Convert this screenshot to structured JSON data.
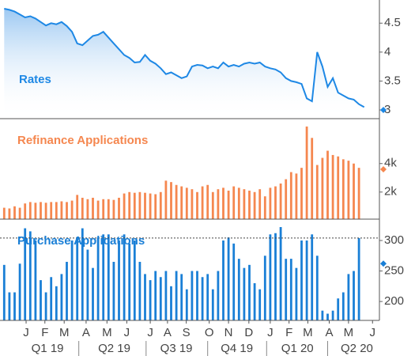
{
  "chart_data": [
    {
      "type": "line",
      "title": "Rates",
      "color": "#1e88e5",
      "values": [
        4.75,
        4.73,
        4.7,
        4.65,
        4.6,
        4.62,
        4.58,
        4.52,
        4.46,
        4.5,
        4.48,
        4.52,
        4.45,
        4.35,
        4.15,
        4.12,
        4.2,
        4.28,
        4.3,
        4.35,
        4.25,
        4.15,
        4.05,
        3.95,
        3.9,
        3.82,
        3.83,
        3.95,
        3.85,
        3.8,
        3.72,
        3.62,
        3.65,
        3.6,
        3.55,
        3.58,
        3.75,
        3.78,
        3.77,
        3.72,
        3.75,
        3.72,
        3.82,
        3.75,
        3.78,
        3.75,
        3.8,
        3.82,
        3.8,
        3.82,
        3.75,
        3.72,
        3.7,
        3.65,
        3.55,
        3.5,
        3.48,
        3.45,
        3.2,
        3.15,
        4.0,
        3.75,
        3.4,
        3.55,
        3.3,
        3.25,
        3.2,
        3.18,
        3.1,
        3.05
      ],
      "ylim": [
        2.85,
        4.9
      ],
      "yticks": [
        3,
        3.5,
        4,
        4.5
      ],
      "marker": 3.0
    },
    {
      "type": "bar",
      "title": "Refinance Applications",
      "color": "#f5874f",
      "values": [
        900,
        850,
        1000,
        900,
        1200,
        1300,
        1250,
        1300,
        1250,
        1300,
        1300,
        1350,
        1300,
        1400,
        1800,
        1600,
        1500,
        1600,
        1400,
        1500,
        1500,
        1450,
        1600,
        1900,
        2000,
        1950,
        2000,
        1950,
        1900,
        1850,
        2000,
        2800,
        2700,
        2500,
        2400,
        2300,
        2200,
        2000,
        2400,
        2500,
        2000,
        2200,
        2300,
        2100,
        2400,
        2300,
        2200,
        2100,
        2000,
        2200,
        1700,
        2300,
        2400,
        2600,
        2900,
        3400,
        3300,
        3700,
        6600,
        5800,
        3900,
        4400,
        4900,
        4600,
        4500,
        4300,
        4200,
        4000,
        3700,
        null
      ],
      "ylim": [
        100,
        7150
      ],
      "yticks": [
        {
          "value": 2000,
          "label": "2k"
        },
        {
          "value": 4000,
          "label": "4k"
        }
      ],
      "marker": 3600
    },
    {
      "type": "bar",
      "title": "Purchase Applications",
      "color": "#1a7fd6",
      "values": [
        260,
        215,
        215,
        262,
        320,
        315,
        300,
        235,
        215,
        240,
        225,
        245,
        265,
        300,
        305,
        320,
        285,
        255,
        305,
        310,
        310,
        265,
        300,
        310,
        295,
        300,
        265,
        245,
        235,
        250,
        240,
        250,
        225,
        250,
        245,
        220,
        250,
        250,
        240,
        245,
        220,
        250,
        300,
        305,
        295,
        270,
        255,
        260,
        230,
        220,
        275,
        310,
        312,
        322,
        270,
        270,
        255,
        300,
        300,
        310,
        275,
        185,
        180,
        185,
        205,
        215,
        245,
        250,
        304,
        null
      ],
      "ylim": [
        169,
        335
      ],
      "yticks": [
        200,
        250,
        300
      ],
      "marker": 262,
      "reference_line": 304,
      "categories": [
        null,
        null,
        null,
        null,
        null,
        null,
        null,
        null,
        null,
        null,
        null,
        null,
        null,
        null,
        null,
        null,
        null,
        null,
        null,
        null,
        null,
        null,
        null,
        null,
        null,
        null,
        null,
        null,
        null,
        null,
        null,
        null,
        null,
        null,
        null,
        null,
        null,
        null,
        null,
        null,
        null,
        null,
        null,
        null,
        null,
        null,
        null,
        null,
        null,
        null,
        null,
        null,
        null,
        null,
        null,
        null,
        null,
        null,
        null,
        null,
        null,
        null,
        null,
        null,
        null,
        null,
        null,
        null,
        null,
        null
      ],
      "xticks": [
        {
          "value": 4.2,
          "label": "J"
        },
        {
          "value": 7.8,
          "label": "F"
        },
        {
          "value": 11.5,
          "label": "M"
        },
        {
          "value": 15.7,
          "label": "A"
        },
        {
          "value": 19.7,
          "label": "M"
        },
        {
          "value": 23.5,
          "label": "J"
        },
        {
          "value": 28,
          "label": "J"
        },
        {
          "value": 31.3,
          "label": "A"
        },
        {
          "value": 34.9,
          "label": "S"
        },
        {
          "value": 39.3,
          "label": "O"
        },
        {
          "value": 43,
          "label": "N"
        },
        {
          "value": 46.9,
          "label": "D"
        },
        {
          "value": 51,
          "label": "J"
        },
        {
          "value": 54.6,
          "label": "F"
        },
        {
          "value": 58.2,
          "label": "M"
        },
        {
          "value": 62.3,
          "label": "A"
        },
        {
          "value": 66,
          "label": "M"
        },
        {
          "value": 70.6,
          "label": "J"
        }
      ],
      "quarter_ticks": [
        {
          "value": 8.3,
          "label": "Q1 19"
        },
        {
          "value": 21.1,
          "label": "Q2 19"
        },
        {
          "value": 33,
          "label": "Q3 19"
        },
        {
          "value": 44.6,
          "label": "Q4 19"
        },
        {
          "value": 56.2,
          "label": "Q1 20"
        },
        {
          "value": 67.6,
          "label": "Q2 20"
        }
      ],
      "quarter_bounds": [
        14.3,
        27.2,
        39,
        50.3,
        62
      ]
    }
  ]
}
